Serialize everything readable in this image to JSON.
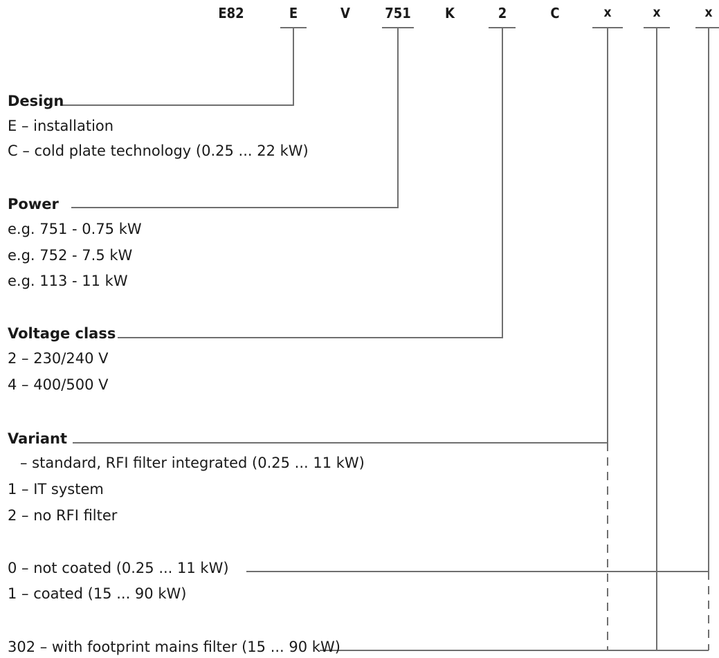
{
  "code_segments": [
    "E82",
    "E",
    "V",
    "751",
    "K",
    "2",
    "C",
    "x",
    "x",
    "x"
  ],
  "sections": {
    "design": {
      "heading": "Design",
      "options": [
        "E – installation",
        "C – cold plate technology (0.25 ... 22 kW)"
      ]
    },
    "power": {
      "heading": "Power",
      "options": [
        "e.g. 751 - 0.75 kW",
        "e.g. 752 - 7.5 kW",
        "e.g. 113 - 11 kW"
      ]
    },
    "voltage": {
      "heading": "Voltage class",
      "options": [
        "2 – 230/240 V",
        "4 – 400/500 V"
      ]
    },
    "variant": {
      "heading": "Variant",
      "options": [
        "– standard, RFI filter integrated (0.25 ... 11 kW)",
        "1 – IT system",
        "2 – no RFI filter"
      ]
    },
    "coating": {
      "options": [
        "0 – not coated (0.25 ... 11 kW)",
        "1 – coated (15 ... 90 kW)"
      ]
    },
    "filter": {
      "options": [
        "302 – with footprint mains filter (15 ... 90 kW)"
      ]
    }
  },
  "colors": {
    "text": "#1a1a1a",
    "line": "#6f6f6f"
  }
}
